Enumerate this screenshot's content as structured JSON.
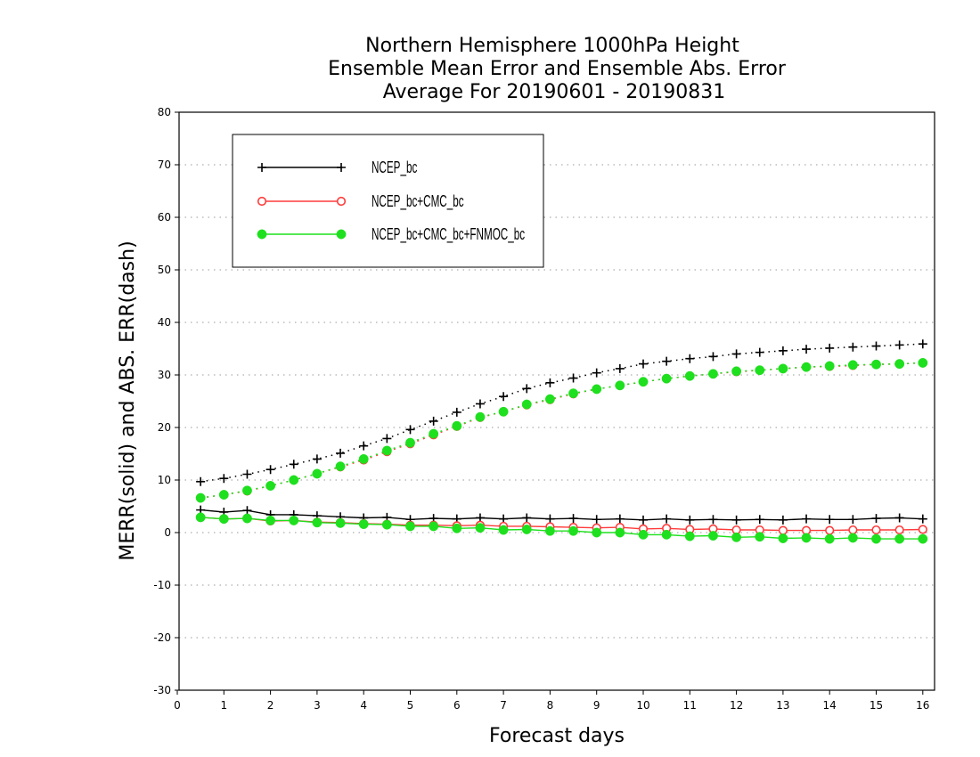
{
  "chart_data": {
    "type": "line",
    "title_lines": [
      "Northern Hemisphere 1000hPa Height",
      "Ensemble Mean Error and Ensemble Abs. Error",
      "Average For 20190601 - 20190831"
    ],
    "xlabel": "Forecast days",
    "ylabel": "MERR(solid) and ABS. ERR(dash)",
    "xlim": [
      0,
      16.25
    ],
    "ylim": [
      -30,
      80
    ],
    "x_ticks": [
      "0",
      "1",
      "2",
      "3",
      "4",
      "5",
      "6",
      "7",
      "8",
      "9",
      "10",
      "11",
      "12",
      "13",
      "14",
      "15",
      "16"
    ],
    "y_ticks": [
      "80",
      "70",
      "60",
      "50",
      "40",
      "30",
      "20",
      "10",
      "0",
      "-10",
      "-20",
      "-30"
    ],
    "y_gridlines": [
      70,
      60,
      50,
      40,
      30,
      20,
      10,
      0,
      -10,
      -20
    ],
    "grid": "horizontal dotted",
    "legend_position": "top-left",
    "x": [
      0.5,
      1,
      1.5,
      2,
      2.5,
      3,
      3.5,
      4,
      4.5,
      5,
      5.5,
      6,
      6.5,
      7,
      7.5,
      8,
      8.5,
      9,
      9.5,
      10,
      10.5,
      11,
      11.5,
      12,
      12.5,
      13,
      13.5,
      14,
      14.5,
      15,
      15.5,
      16
    ],
    "series": [
      {
        "name": "NCEP_bc",
        "color": "#000000",
        "marker": "plus",
        "merr": [
          4.3,
          3.9,
          4.2,
          3.4,
          3.4,
          3.2,
          3.0,
          2.8,
          2.9,
          2.5,
          2.7,
          2.6,
          2.8,
          2.6,
          2.8,
          2.6,
          2.7,
          2.5,
          2.6,
          2.4,
          2.6,
          2.4,
          2.5,
          2.4,
          2.5,
          2.4,
          2.6,
          2.5,
          2.5,
          2.7,
          2.8,
          2.6
        ],
        "abs_err": [
          9.7,
          10.3,
          11.1,
          12.0,
          13.0,
          14.0,
          15.1,
          16.5,
          17.9,
          19.6,
          21.2,
          22.9,
          24.5,
          25.9,
          27.4,
          28.5,
          29.4,
          30.4,
          31.2,
          32.1,
          32.6,
          33.1,
          33.5,
          34.0,
          34.3,
          34.6,
          34.9,
          35.1,
          35.3,
          35.5,
          35.7,
          35.9
        ]
      },
      {
        "name": "NCEP_bc+CMC_bc",
        "color": "#ff3b3b",
        "marker": "open-circle",
        "merr": [
          2.9,
          2.6,
          2.7,
          2.2,
          2.3,
          2.0,
          1.9,
          1.7,
          1.6,
          1.4,
          1.4,
          1.3,
          1.4,
          1.2,
          1.2,
          1.1,
          1.0,
          0.9,
          1.0,
          0.7,
          0.8,
          0.6,
          0.7,
          0.5,
          0.5,
          0.4,
          0.4,
          0.4,
          0.5,
          0.5,
          0.5,
          0.6
        ],
        "abs_err": [
          6.6,
          7.2,
          7.9,
          8.9,
          10.0,
          11.2,
          12.5,
          13.8,
          15.4,
          16.9,
          18.6,
          20.2,
          21.9,
          23.0,
          24.3,
          25.3,
          26.4,
          27.3,
          28.0,
          28.7,
          29.3,
          29.8,
          30.2,
          30.6,
          30.9,
          31.2,
          31.5,
          31.6,
          31.8,
          32.0,
          32.1,
          32.3
        ]
      },
      {
        "name": "NCEP_bc+CMC_bc+FNMOC_bc",
        "color": "#1ee01e",
        "marker": "filled-circle",
        "merr": [
          2.9,
          2.6,
          2.7,
          2.3,
          2.3,
          1.9,
          1.8,
          1.6,
          1.5,
          1.2,
          1.2,
          0.8,
          0.9,
          0.5,
          0.6,
          0.3,
          0.3,
          0.0,
          0.0,
          -0.4,
          -0.4,
          -0.7,
          -0.6,
          -0.9,
          -0.8,
          -1.1,
          -1.0,
          -1.2,
          -1.0,
          -1.2,
          -1.2,
          -1.2
        ],
        "abs_err": [
          6.6,
          7.2,
          8.0,
          8.9,
          10.0,
          11.2,
          12.6,
          14.0,
          15.6,
          17.1,
          18.8,
          20.3,
          22.0,
          23.0,
          24.4,
          25.4,
          26.5,
          27.3,
          28.0,
          28.7,
          29.3,
          29.8,
          30.2,
          30.7,
          30.9,
          31.2,
          31.5,
          31.7,
          31.9,
          32.0,
          32.1,
          32.3
        ]
      }
    ]
  }
}
